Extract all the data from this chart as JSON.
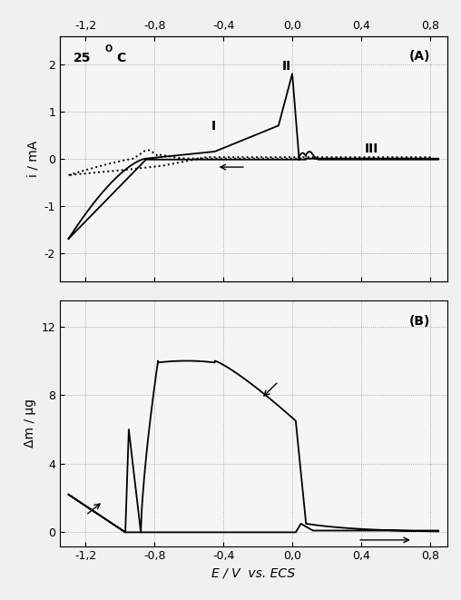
{
  "title_A": "(A)",
  "title_B": "(B)",
  "xlabel": "E / V  vs. ECS",
  "ylabel_A": "i / mA",
  "ylabel_B": "Δm / μg",
  "xlim": [
    -1.35,
    0.9
  ],
  "ylim_A": [
    -2.6,
    2.6
  ],
  "ylim_B": [
    -0.8,
    13.5
  ],
  "xticks": [
    -1.2,
    -0.8,
    -0.4,
    0.0,
    0.4,
    0.8
  ],
  "yticks_A": [
    -2,
    -1,
    0,
    1,
    2
  ],
  "yticks_B": [
    0,
    4,
    8,
    12
  ],
  "xtick_labels": [
    "-1,2",
    "-0,8",
    "-0,4",
    "0,0",
    "0,4",
    "0,8"
  ],
  "background_color": "#f5f5f5",
  "line_color": "#000000",
  "grid_color": "#999999"
}
